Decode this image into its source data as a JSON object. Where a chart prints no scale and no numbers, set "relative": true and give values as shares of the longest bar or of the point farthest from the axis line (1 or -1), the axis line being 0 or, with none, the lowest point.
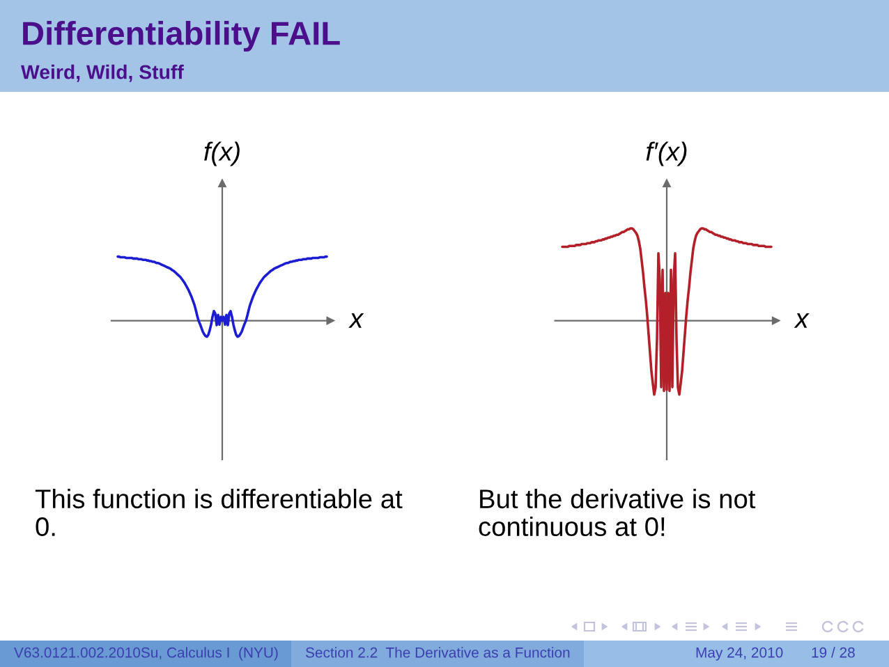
{
  "chart_data": [
    {
      "type": "line",
      "title": "Differentiability FAIL",
      "subtitle": "Weird, Wild, Stuff",
      "xlabel": "x",
      "ylabel": "f(x)",
      "relative": true,
      "categories": [
        null,
        null,
        null,
        null,
        null,
        null,
        null,
        null,
        null,
        null,
        null,
        null,
        null,
        null,
        null,
        null,
        null,
        null,
        null,
        null,
        null,
        null,
        null,
        null,
        null,
        null,
        null,
        null,
        null,
        null,
        null,
        null,
        null,
        null,
        null,
        null,
        null,
        null,
        null,
        null,
        null,
        null,
        null,
        null,
        null,
        null,
        null,
        null,
        null,
        null,
        null,
        null,
        null,
        null,
        null,
        null,
        null,
        null,
        null,
        null,
        null,
        null,
        null,
        null,
        null,
        null,
        null,
        null,
        null,
        null,
        null,
        null,
        null,
        null,
        null,
        null,
        null,
        null,
        null,
        null,
        null,
        null,
        null,
        null,
        null,
        null,
        null,
        null,
        null,
        null,
        null,
        null,
        null,
        null,
        null,
        null,
        null,
        null,
        null,
        null,
        null,
        null,
        null,
        null,
        null,
        null,
        null,
        null,
        null,
        null,
        null,
        null,
        null,
        null,
        null,
        null,
        null,
        null,
        null,
        null,
        null,
        null,
        null,
        null,
        null,
        null,
        null,
        null,
        null,
        null,
        null,
        null,
        null,
        null,
        null,
        null,
        null,
        null,
        null,
        null,
        null,
        null,
        null,
        null,
        null,
        null,
        null,
        null,
        null,
        null,
        null
      ],
      "series": [
        {
          "color": "#1c1cd0",
          "values": [
            1.0,
            1.0,
            0.99,
            0.99,
            0.99,
            0.99,
            0.98,
            0.98,
            0.98,
            0.98,
            0.98,
            0.97,
            0.97,
            0.97,
            0.97,
            0.96,
            0.96,
            0.96,
            0.95,
            0.95,
            0.95,
            0.94,
            0.94,
            0.93,
            0.93,
            0.92,
            0.92,
            0.91,
            0.9,
            0.9,
            0.89,
            0.88,
            0.87,
            0.86,
            0.85,
            0.84,
            0.83,
            0.82,
            0.81,
            0.79,
            0.78,
            0.76,
            0.74,
            0.72,
            0.7,
            0.68,
            0.65,
            0.62,
            0.59,
            0.55,
            0.51,
            0.47,
            0.42,
            0.37,
            0.31,
            0.25,
            0.17,
            0.08,
            0.0,
            -0.05,
            -0.11,
            -0.17,
            -0.21,
            -0.24,
            -0.25,
            -0.22,
            -0.15,
            -0.06,
            0.06,
            0.15,
            0.11,
            -0.07,
            0.09,
            -0.06,
            0.06,
            0.0,
            0.06,
            -0.06,
            0.09,
            -0.07,
            0.11,
            0.15,
            0.06,
            -0.06,
            -0.15,
            -0.22,
            -0.25,
            -0.24,
            -0.21,
            -0.17,
            -0.11,
            -0.05,
            0.0,
            0.08,
            0.17,
            0.25,
            0.31,
            0.37,
            0.42,
            0.47,
            0.51,
            0.55,
            0.59,
            0.62,
            0.65,
            0.68,
            0.7,
            0.72,
            0.74,
            0.76,
            0.78,
            0.79,
            0.81,
            0.82,
            0.83,
            0.84,
            0.85,
            0.86,
            0.87,
            0.88,
            0.89,
            0.9,
            0.9,
            0.91,
            0.92,
            0.92,
            0.93,
            0.93,
            0.94,
            0.94,
            0.95,
            0.95,
            0.95,
            0.96,
            0.96,
            0.96,
            0.97,
            0.97,
            0.97,
            0.97,
            0.98,
            0.98,
            0.98,
            0.98,
            0.98,
            0.99,
            0.99,
            0.99,
            0.99,
            1.0,
            1.0
          ]
        }
      ],
      "annotations": [
        "This function is differentiable at 0.",
        "V63.0121.002.2010Su, Calculus I  (NYU)",
        "Section 2.2  The Derivative as a Function",
        "May 24, 2010",
        "19 / 28"
      ]
    },
    {
      "type": "line",
      "xlabel": "x",
      "ylabel": "f′(x)",
      "relative": true,
      "categories": [
        null,
        null,
        null,
        null,
        null,
        null,
        null,
        null,
        null,
        null,
        null,
        null,
        null,
        null,
        null,
        null,
        null,
        null,
        null,
        null,
        null,
        null,
        null,
        null,
        null,
        null,
        null,
        null,
        null,
        null,
        null,
        null,
        null,
        null,
        null,
        null,
        null,
        null,
        null,
        null,
        null,
        null,
        null,
        null,
        null,
        null,
        null,
        null,
        null,
        null,
        null,
        null,
        null,
        null,
        null,
        null,
        null,
        null,
        null,
        null,
        null,
        null,
        null,
        null,
        null,
        null,
        null,
        null,
        null,
        null,
        null,
        null,
        null,
        null,
        null,
        null,
        null,
        null,
        null,
        null,
        null,
        null,
        null,
        null,
        null,
        null,
        null,
        null,
        null,
        null,
        null,
        null,
        null,
        null,
        null,
        null,
        null,
        null,
        null,
        null,
        null,
        null,
        null,
        null,
        null,
        null,
        null,
        null,
        null,
        null,
        null,
        null,
        null,
        null,
        null,
        null,
        null,
        null,
        null,
        null,
        null,
        null,
        null,
        null,
        null,
        null,
        null,
        null,
        null,
        null,
        null,
        null,
        null,
        null,
        null,
        null,
        null,
        null,
        null,
        null,
        null,
        null,
        null,
        null,
        null,
        null,
        null,
        null,
        null,
        null,
        null
      ],
      "series": [
        {
          "color": "#b3202a",
          "values": [
            0.8,
            0.8,
            0.8,
            0.8,
            0.8,
            0.81,
            0.81,
            0.81,
            0.81,
            0.81,
            0.82,
            0.82,
            0.82,
            0.82,
            0.83,
            0.83,
            0.83,
            0.83,
            0.84,
            0.84,
            0.84,
            0.85,
            0.85,
            0.85,
            0.86,
            0.86,
            0.87,
            0.87,
            0.87,
            0.88,
            0.88,
            0.89,
            0.89,
            0.9,
            0.9,
            0.91,
            0.91,
            0.92,
            0.92,
            0.93,
            0.93,
            0.94,
            0.95,
            0.96,
            0.96,
            0.97,
            0.98,
            0.99,
            0.99,
            1.0,
            1.0,
            0.99,
            0.97,
            0.95,
            0.92,
            0.86,
            0.78,
            0.65,
            0.52,
            0.36,
            0.22,
            0.05,
            -0.15,
            -0.35,
            -0.55,
            -0.68,
            -0.8,
            -0.72,
            -0.2,
            0.73,
            0.45,
            -0.72,
            0.55,
            -0.76,
            0.3,
            -0.75,
            0.3,
            -0.76,
            0.55,
            -0.72,
            0.45,
            0.73,
            -0.2,
            -0.72,
            -0.8,
            -0.68,
            -0.55,
            -0.35,
            -0.15,
            0.05,
            0.22,
            0.36,
            0.52,
            0.65,
            0.78,
            0.86,
            0.92,
            0.95,
            0.97,
            0.99,
            1.0,
            1.0,
            0.99,
            0.99,
            0.98,
            0.97,
            0.96,
            0.96,
            0.95,
            0.94,
            0.93,
            0.93,
            0.92,
            0.92,
            0.91,
            0.91,
            0.9,
            0.9,
            0.89,
            0.89,
            0.88,
            0.88,
            0.87,
            0.87,
            0.87,
            0.86,
            0.86,
            0.85,
            0.85,
            0.85,
            0.84,
            0.84,
            0.84,
            0.83,
            0.83,
            0.83,
            0.83,
            0.82,
            0.82,
            0.82,
            0.82,
            0.81,
            0.81,
            0.81,
            0.81,
            0.81,
            0.8,
            0.8,
            0.8,
            0.8,
            0.8
          ]
        }
      ],
      "annotations": [
        "But the derivative is not continuous at 0!"
      ]
    }
  ]
}
